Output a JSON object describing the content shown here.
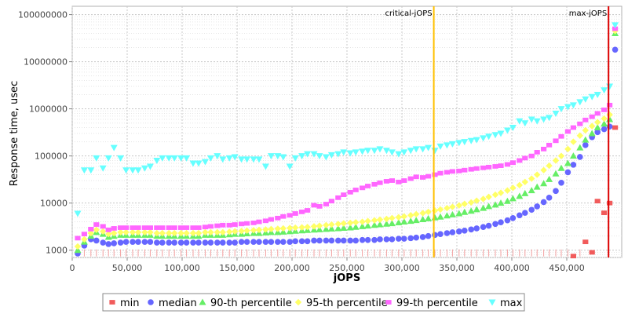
{
  "chart_data": {
    "type": "scatter",
    "title": "",
    "xlabel": "jOPS",
    "ylabel": "Response time, usec",
    "xlim": [
      0,
      500000
    ],
    "ylim": [
      700,
      150000000
    ],
    "yscale": "log",
    "grid": true,
    "legend_position": "bottom",
    "x_ticks": [
      0,
      50000,
      100000,
      150000,
      200000,
      250000,
      300000,
      350000,
      400000,
      450000
    ],
    "x_tick_labels": [
      "0",
      "50,000",
      "100,000",
      "150,000",
      "200,000",
      "250,000",
      "300,000",
      "350,000",
      "400,000",
      "450,000"
    ],
    "y_ticks": [
      1000,
      10000,
      100000,
      1000000,
      10000000,
      100000000
    ],
    "y_tick_labels": [
      "1000",
      "10000",
      "100000",
      "1000000",
      "10000000",
      "100000000"
    ],
    "markers": [
      {
        "label": "critical-jOPS",
        "x": 329000,
        "color": "#ffc000"
      },
      {
        "label": "max-jOPS",
        "x": 488000,
        "color": "#dd0000"
      }
    ],
    "x": [
      5000,
      11000,
      17000,
      22000,
      28000,
      33000,
      38000,
      44000,
      49000,
      55000,
      60000,
      66000,
      71000,
      77000,
      82000,
      88000,
      93000,
      99000,
      104000,
      110000,
      115000,
      121000,
      126000,
      132000,
      137000,
      143000,
      148000,
      154000,
      159000,
      165000,
      170000,
      176000,
      181000,
      187000,
      192000,
      198000,
      203000,
      209000,
      214000,
      220000,
      225000,
      231000,
      236000,
      242000,
      247000,
      253000,
      258000,
      264000,
      269000,
      275000,
      280000,
      286000,
      291000,
      297000,
      302000,
      308000,
      313000,
      319000,
      324000,
      330000,
      335000,
      341000,
      346000,
      352000,
      357000,
      363000,
      368000,
      374000,
      379000,
      385000,
      390000,
      396000,
      401000,
      407000,
      412000,
      418000,
      423000,
      429000,
      434000,
      440000,
      445000,
      451000,
      456000,
      462000,
      467000,
      473000,
      478000,
      484000,
      489000,
      494000
    ],
    "series": [
      {
        "name": "min",
        "color": "#f15b5b",
        "marker": "square",
        "values": [
          1000,
          1000,
          1000,
          1000,
          1000,
          1000,
          1000,
          1000,
          1000,
          1000,
          1000,
          1000,
          1000,
          1000,
          1000,
          1000,
          1000,
          1000,
          1000,
          1000,
          1000,
          1000,
          1000,
          1000,
          1000,
          1000,
          1000,
          1000,
          1000,
          1000,
          1000,
          1000,
          1000,
          1000,
          1000,
          1000,
          1000,
          1000,
          1000,
          1000,
          1000,
          1000,
          1000,
          1000,
          1000,
          1000,
          1000,
          1000,
          1000,
          1000,
          1000,
          1000,
          1000,
          1000,
          1000,
          1000,
          1000,
          1000,
          1000,
          1000,
          1000,
          1000,
          1000,
          1000,
          1000,
          1000,
          1000,
          1000,
          1000,
          1000,
          1000,
          1000,
          1000,
          1000,
          1000,
          1000,
          1000,
          1000,
          1000,
          1000,
          1000,
          1000,
          750,
          1000,
          1500,
          900,
          11000,
          6200,
          10000,
          400000
        ]
      },
      {
        "name": "median",
        "color": "#6666ff",
        "marker": "circle",
        "values": [
          850,
          1250,
          1700,
          1600,
          1450,
          1350,
          1400,
          1450,
          1500,
          1500,
          1500,
          1500,
          1500,
          1450,
          1450,
          1450,
          1450,
          1450,
          1450,
          1450,
          1450,
          1450,
          1450,
          1450,
          1450,
          1450,
          1450,
          1500,
          1500,
          1500,
          1500,
          1500,
          1500,
          1500,
          1500,
          1500,
          1550,
          1550,
          1550,
          1600,
          1600,
          1600,
          1600,
          1600,
          1600,
          1600,
          1600,
          1650,
          1650,
          1650,
          1700,
          1700,
          1700,
          1750,
          1750,
          1800,
          1850,
          1900,
          2000,
          2100,
          2200,
          2300,
          2400,
          2500,
          2600,
          2750,
          2900,
          3100,
          3300,
          3600,
          3900,
          4300,
          4800,
          5500,
          6200,
          7200,
          8500,
          10500,
          13000,
          18000,
          27000,
          45000,
          65000,
          95000,
          170000,
          250000,
          320000,
          370000,
          420000,
          18000000
        ]
      },
      {
        "name": "90-th percentile",
        "color": "#66ee66",
        "marker": "triangle-up",
        "values": [
          1000,
          1500,
          2000,
          2400,
          2200,
          1900,
          2000,
          2100,
          2100,
          2100,
          2100,
          2100,
          2100,
          2000,
          2000,
          2000,
          2000,
          2000,
          2000,
          2000,
          2000,
          2100,
          2100,
          2100,
          2100,
          2150,
          2200,
          2200,
          2250,
          2300,
          2300,
          2350,
          2400,
          2400,
          2450,
          2500,
          2550,
          2600,
          2650,
          2700,
          2750,
          2800,
          2850,
          2900,
          2950,
          3000,
          3100,
          3200,
          3300,
          3400,
          3500,
          3600,
          3700,
          3850,
          4000,
          4150,
          4300,
          4500,
          4700,
          4900,
          5100,
          5400,
          5700,
          6000,
          6400,
          6800,
          7300,
          7800,
          8500,
          9200,
          10000,
          11000,
          12500,
          14000,
          16000,
          18500,
          22000,
          26000,
          32000,
          42000,
          55000,
          70000,
          100000,
          150000,
          220000,
          300000,
          400000,
          480000,
          600000,
          40000000
        ]
      },
      {
        "name": "95-th percentile",
        "color": "#ffff66",
        "marker": "diamond",
        "values": [
          1200,
          1700,
          2300,
          2700,
          2500,
          2200,
          2300,
          2400,
          2400,
          2400,
          2400,
          2400,
          2400,
          2300,
          2300,
          2300,
          2300,
          2300,
          2300,
          2300,
          2300,
          2400,
          2400,
          2400,
          2400,
          2450,
          2500,
          2550,
          2600,
          2650,
          2700,
          2750,
          2800,
          2850,
          2900,
          2950,
          3000,
          3050,
          3100,
          3200,
          3300,
          3400,
          3500,
          3600,
          3700,
          3800,
          3900,
          4000,
          4150,
          4300,
          4450,
          4600,
          4800,
          5000,
          5200,
          5500,
          5800,
          6100,
          6500,
          6900,
          7300,
          7800,
          8300,
          8900,
          9600,
          10300,
          11200,
          12200,
          13500,
          15000,
          16500,
          18500,
          21000,
          24000,
          28000,
          33000,
          40000,
          50000,
          62000,
          80000,
          100000,
          140000,
          200000,
          270000,
          350000,
          430000,
          520000,
          620000,
          750000,
          45000000
        ]
      },
      {
        "name": "99-th percentile",
        "color": "#ff66ff",
        "marker": "square",
        "values": [
          1800,
          2200,
          2800,
          3500,
          3200,
          2700,
          2900,
          3000,
          3000,
          3000,
          3000,
          3000,
          3000,
          3000,
          3000,
          3000,
          3000,
          3000,
          3000,
          3000,
          3000,
          3100,
          3200,
          3300,
          3400,
          3400,
          3500,
          3600,
          3700,
          3800,
          4000,
          4200,
          4500,
          4800,
          5200,
          5500,
          6000,
          6500,
          7000,
          9000,
          8500,
          9500,
          11000,
          13000,
          15000,
          17000,
          19000,
          21000,
          23000,
          25000,
          27000,
          29000,
          30000,
          28000,
          30000,
          33000,
          36000,
          35000,
          37000,
          40000,
          43000,
          45000,
          47000,
          48000,
          50000,
          52000,
          54000,
          56000,
          58000,
          60000,
          62000,
          66000,
          72000,
          80000,
          90000,
          100000,
          120000,
          140000,
          170000,
          210000,
          260000,
          330000,
          400000,
          480000,
          580000,
          680000,
          800000,
          950000,
          1200000,
          50000000
        ]
      },
      {
        "name": "max",
        "color": "#66ffff",
        "marker": "triangle-down",
        "values": [
          6000,
          50000,
          50000,
          90000,
          55000,
          90000,
          150000,
          90000,
          50000,
          50000,
          50000,
          55000,
          60000,
          80000,
          90000,
          90000,
          90000,
          90000,
          90000,
          70000,
          70000,
          75000,
          90000,
          100000,
          85000,
          90000,
          95000,
          85000,
          85000,
          85000,
          85000,
          60000,
          100000,
          100000,
          95000,
          60000,
          90000,
          100000,
          110000,
          110000,
          100000,
          95000,
          105000,
          110000,
          120000,
          115000,
          120000,
          125000,
          130000,
          130000,
          140000,
          130000,
          120000,
          110000,
          120000,
          130000,
          140000,
          140000,
          150000,
          130000,
          160000,
          170000,
          180000,
          190000,
          200000,
          210000,
          220000,
          240000,
          260000,
          280000,
          300000,
          350000,
          400000,
          550000,
          500000,
          600000,
          550000,
          600000,
          650000,
          800000,
          1000000,
          1100000,
          1200000,
          1400000,
          1600000,
          1800000,
          2000000,
          2500000,
          3000000,
          60000000
        ]
      }
    ]
  }
}
